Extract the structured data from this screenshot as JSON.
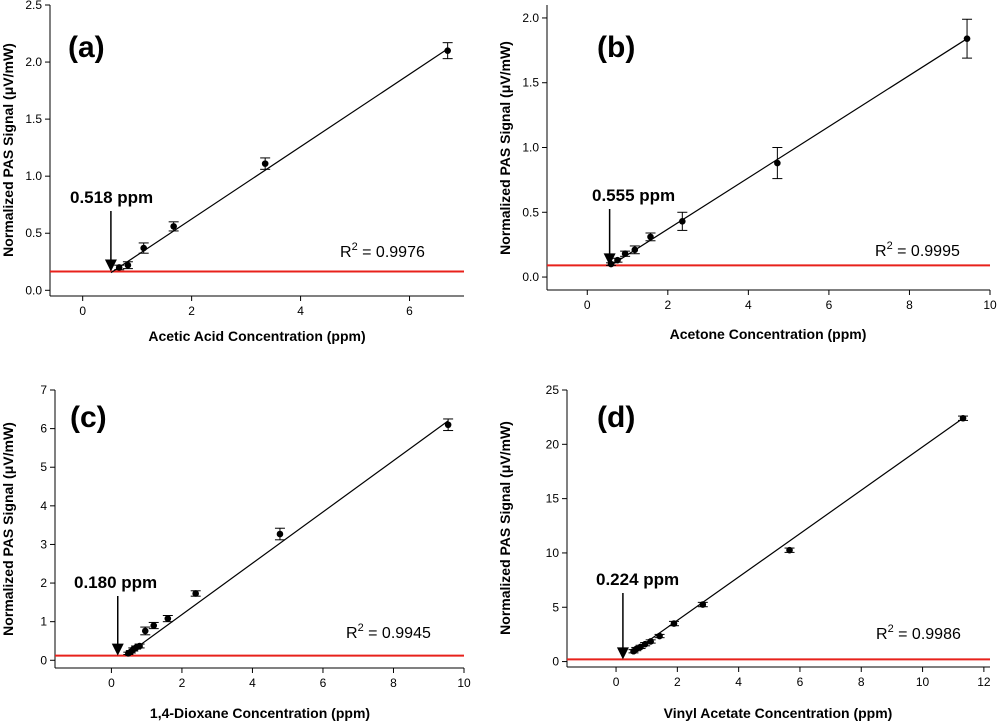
{
  "colors": {
    "threshold": "#e8211b",
    "ink": "#000000",
    "background": "#ffffff"
  },
  "chart_data": [
    {
      "type": "scatter",
      "panel_label": "(a)",
      "xlabel": "Acetic Acid Concentration (ppm)",
      "ylabel": "Normalized PAS Signal (μV/mW)",
      "xlim": [
        -0.6,
        7.0
      ],
      "ylim": [
        -0.05,
        2.5
      ],
      "xticks": [
        0,
        2,
        4,
        6
      ],
      "xtick_labels": [
        "0",
        "2",
        "4",
        "6"
      ],
      "yticks": [
        0,
        0.5,
        1.0,
        1.5,
        2.0,
        2.5
      ],
      "ytick_labels": [
        "0.0",
        "0.5",
        "1.0",
        "1.5",
        "2.0",
        "2.5"
      ],
      "points": [
        {
          "x": 0.67,
          "y": 0.2,
          "err": 0.02
        },
        {
          "x": 0.83,
          "y": 0.22,
          "err": 0.03
        },
        {
          "x": 1.12,
          "y": 0.37,
          "err": 0.045
        },
        {
          "x": 1.67,
          "y": 0.56,
          "err": 0.04
        },
        {
          "x": 3.35,
          "y": 1.11,
          "err": 0.05
        },
        {
          "x": 6.7,
          "y": 2.1,
          "err": 0.07
        }
      ],
      "fit": {
        "x0": 0.52,
        "y0": 0.155,
        "x1": 6.7,
        "y1": 2.115
      },
      "threshold_y": 0.165,
      "lod_x": 0.518,
      "lod_text": "0.518 ppm",
      "r2_prefix": "R",
      "r2_sup": "2",
      "r2_value": " = 0.9976"
    },
    {
      "type": "scatter",
      "panel_label": "(b)",
      "xlabel": "Acetone Concentration (ppm)",
      "ylabel": "Normalized PAS Signal (μV/mW)",
      "xlim": [
        -1.0,
        10.0
      ],
      "ylim": [
        -0.1,
        2.1
      ],
      "xticks": [
        0,
        2,
        4,
        6,
        8,
        10
      ],
      "xtick_labels": [
        "0",
        "2",
        "4",
        "6",
        "8",
        "10"
      ],
      "yticks": [
        0,
        0.5,
        1.0,
        1.5,
        2.0
      ],
      "ytick_labels": [
        "0.0",
        "0.5",
        "1.0",
        "1.5",
        "2.0"
      ],
      "points": [
        {
          "x": 0.59,
          "y": 0.1,
          "err": 0.01
        },
        {
          "x": 0.75,
          "y": 0.13,
          "err": 0.015
        },
        {
          "x": 0.94,
          "y": 0.18,
          "err": 0.02
        },
        {
          "x": 1.18,
          "y": 0.21,
          "err": 0.03
        },
        {
          "x": 1.57,
          "y": 0.31,
          "err": 0.03
        },
        {
          "x": 2.36,
          "y": 0.43,
          "err": 0.07
        },
        {
          "x": 4.72,
          "y": 0.88,
          "err": 0.12
        },
        {
          "x": 9.43,
          "y": 1.84,
          "err": 0.15
        }
      ],
      "fit": {
        "x0": 0.56,
        "y0": 0.085,
        "x1": 9.43,
        "y1": 1.84
      },
      "threshold_y": 0.09,
      "lod_x": 0.555,
      "lod_text": "0.555 ppm",
      "r2_prefix": "R",
      "r2_sup": "2",
      "r2_value": " = 0.9995"
    },
    {
      "type": "scatter",
      "panel_label": "(c)",
      "xlabel": "1,4-Dioxane Concentration (ppm)",
      "ylabel": "Normalized PAS Signal (μV/mW)",
      "xlim": [
        -1.6,
        10.0
      ],
      "ylim": [
        -0.2,
        7.0
      ],
      "xticks": [
        0,
        2,
        4,
        6,
        8,
        10
      ],
      "xtick_labels": [
        "0",
        "2",
        "4",
        "6",
        "8",
        "10"
      ],
      "yticks": [
        0,
        1,
        2,
        3,
        4,
        5,
        6,
        7
      ],
      "ytick_labels": [
        "0",
        "1",
        "2",
        "3",
        "4",
        "5",
        "6",
        "7"
      ],
      "points": [
        {
          "x": 0.48,
          "y": 0.18,
          "err": 0.03
        },
        {
          "x": 0.55,
          "y": 0.22,
          "err": 0.03
        },
        {
          "x": 0.62,
          "y": 0.28,
          "err": 0.04
        },
        {
          "x": 0.7,
          "y": 0.33,
          "err": 0.04
        },
        {
          "x": 0.8,
          "y": 0.37,
          "err": 0.05
        },
        {
          "x": 0.96,
          "y": 0.76,
          "err": 0.1
        },
        {
          "x": 1.2,
          "y": 0.9,
          "err": 0.08
        },
        {
          "x": 1.6,
          "y": 1.08,
          "err": 0.08
        },
        {
          "x": 2.39,
          "y": 1.73,
          "err": 0.07
        },
        {
          "x": 4.78,
          "y": 3.27,
          "err": 0.15
        },
        {
          "x": 9.55,
          "y": 6.1,
          "err": 0.15
        }
      ],
      "fit": {
        "x0": 0.4,
        "y0": 0.12,
        "x1": 9.55,
        "y1": 6.2
      },
      "threshold_y": 0.12,
      "lod_x": 0.18,
      "lod_text": "0.180 ppm",
      "r2_prefix": "R",
      "r2_sup": "2",
      "r2_value": " = 0.9945"
    },
    {
      "type": "scatter",
      "panel_label": "(d)",
      "xlabel": "Vinyl Acetate Concentration (ppm)",
      "ylabel": "Normalized PAS Signal (μV/mW)",
      "xlim": [
        -1.6,
        12.2
      ],
      "ylim": [
        -0.5,
        25.0
      ],
      "xticks": [
        0,
        2,
        4,
        6,
        8,
        10,
        12
      ],
      "xtick_labels": [
        "0",
        "2",
        "4",
        "6",
        "8",
        "10",
        "12"
      ],
      "yticks": [
        0,
        5,
        10,
        15,
        20,
        25
      ],
      "ytick_labels": [
        "0",
        "5",
        "10",
        "15",
        "20",
        "25"
      ],
      "points": [
        {
          "x": 0.57,
          "y": 0.95,
          "err": 0.15
        },
        {
          "x": 0.66,
          "y": 1.15,
          "err": 0.15
        },
        {
          "x": 0.8,
          "y": 1.35,
          "err": 0.15
        },
        {
          "x": 0.95,
          "y": 1.6,
          "err": 0.15
        },
        {
          "x": 1.13,
          "y": 1.85,
          "err": 0.15
        },
        {
          "x": 1.42,
          "y": 2.35,
          "err": 0.15
        },
        {
          "x": 1.89,
          "y": 3.5,
          "err": 0.2
        },
        {
          "x": 2.83,
          "y": 5.25,
          "err": 0.2
        },
        {
          "x": 5.66,
          "y": 10.25,
          "err": 0.2
        },
        {
          "x": 11.32,
          "y": 22.4,
          "err": 0.2
        }
      ],
      "fit": {
        "x0": 0.5,
        "y0": 0.8,
        "x1": 11.32,
        "y1": 22.4
      },
      "threshold_y": 0.2,
      "lod_x": 0.224,
      "lod_text": "0.224 ppm",
      "r2_prefix": "R",
      "r2_sup": "2",
      "r2_value": " = 0.9986"
    }
  ]
}
